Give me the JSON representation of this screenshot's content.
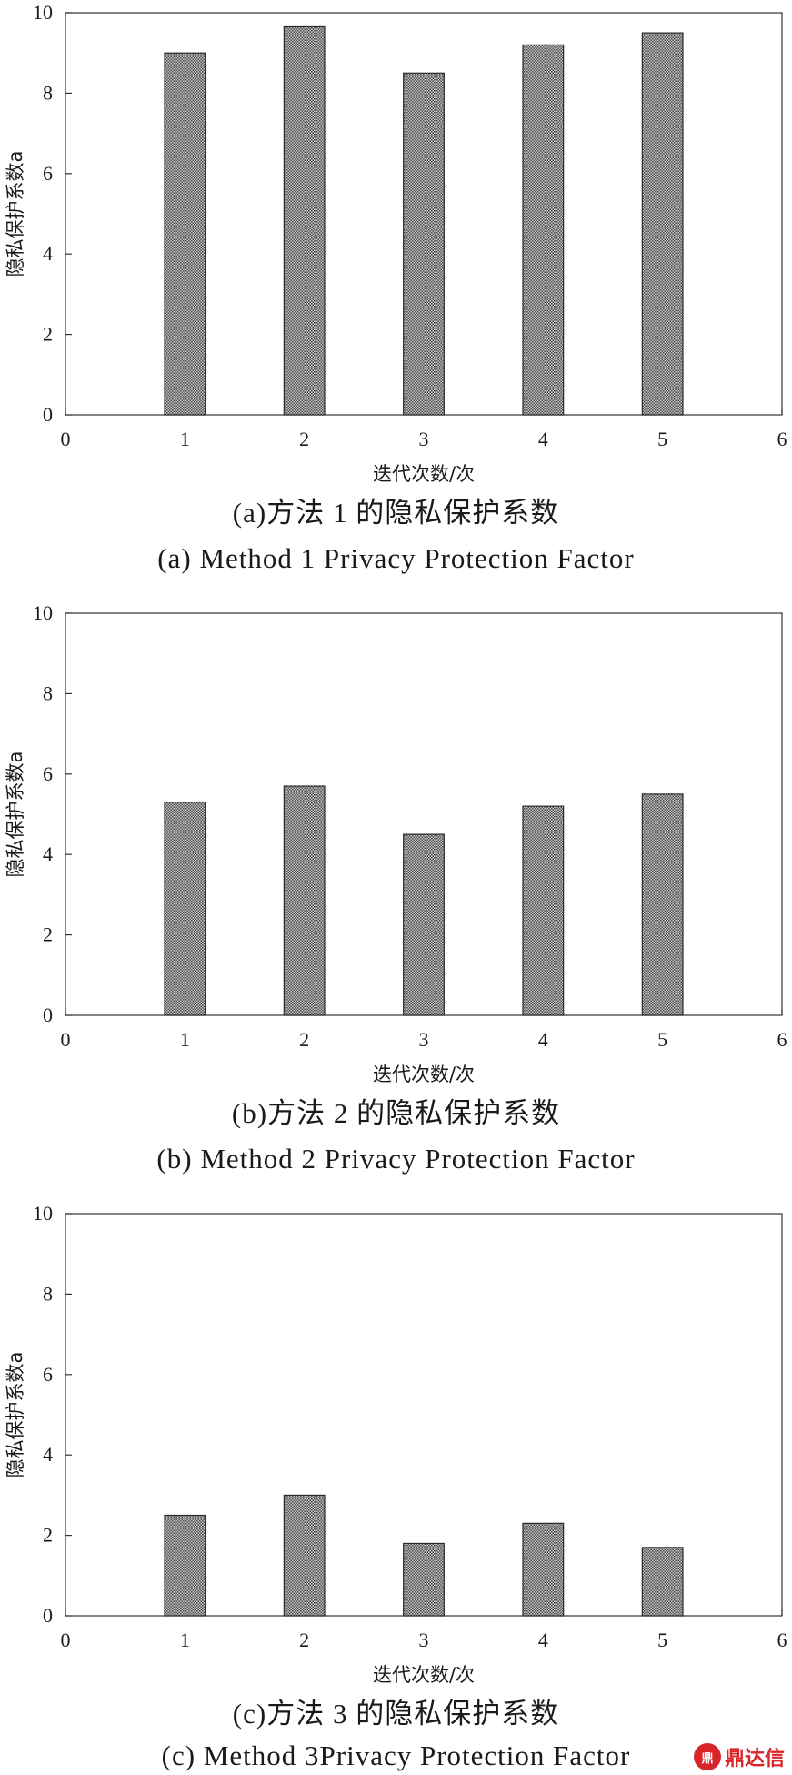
{
  "colors": {
    "bar_fill": "#8f8f8f",
    "bar_stroke": "#2a2a2a",
    "axis": "#333333",
    "brand": "#d9252a"
  },
  "chart_data": [
    {
      "type": "bar",
      "x": [
        1,
        2,
        3,
        4,
        5
      ],
      "values": [
        9.0,
        9.65,
        8.5,
        9.2,
        9.5
      ],
      "xlabel": "迭代次数/次",
      "ylabel": "隐私保护系数a",
      "xlim": [
        0,
        6
      ],
      "ylim": [
        0,
        10
      ],
      "xticks": [
        "0",
        "1",
        "2",
        "3",
        "4",
        "5",
        "6"
      ],
      "yticks": [
        "0",
        "2",
        "4",
        "6",
        "8",
        "10"
      ],
      "grid": false,
      "caption_cn": "(a)方法 1 的隐私保护系数",
      "caption_en": "(a) Method 1 Privacy Protection Factor"
    },
    {
      "type": "bar",
      "x": [
        1,
        2,
        3,
        4,
        5
      ],
      "values": [
        5.3,
        5.7,
        4.5,
        5.2,
        5.5
      ],
      "xlabel": "迭代次数/次",
      "ylabel": "隐私保护系数a",
      "xlim": [
        0,
        6
      ],
      "ylim": [
        0,
        10
      ],
      "xticks": [
        "0",
        "1",
        "2",
        "3",
        "4",
        "5",
        "6"
      ],
      "yticks": [
        "0",
        "2",
        "4",
        "6",
        "8",
        "10"
      ],
      "grid": false,
      "caption_cn": "(b)方法 2 的隐私保护系数",
      "caption_en": "(b) Method 2 Privacy Protection Factor"
    },
    {
      "type": "bar",
      "x": [
        1,
        2,
        3,
        4,
        5
      ],
      "values": [
        2.5,
        3.0,
        1.8,
        2.3,
        1.7
      ],
      "xlabel": "迭代次数/次",
      "ylabel": "隐私保护系数a",
      "xlim": [
        0,
        6
      ],
      "ylim": [
        0,
        10
      ],
      "xticks": [
        "0",
        "1",
        "2",
        "3",
        "4",
        "5",
        "6"
      ],
      "yticks": [
        "0",
        "2",
        "4",
        "6",
        "8",
        "10"
      ],
      "grid": false,
      "caption_cn": "(c)方法 3 的隐私保护系数",
      "caption_en": "(c) Method 3Privacy Protection Factor"
    }
  ],
  "watermark": {
    "icon": "dingdaxin-logo-icon",
    "icon_glyph": "鼎",
    "text": "鼎达信"
  }
}
